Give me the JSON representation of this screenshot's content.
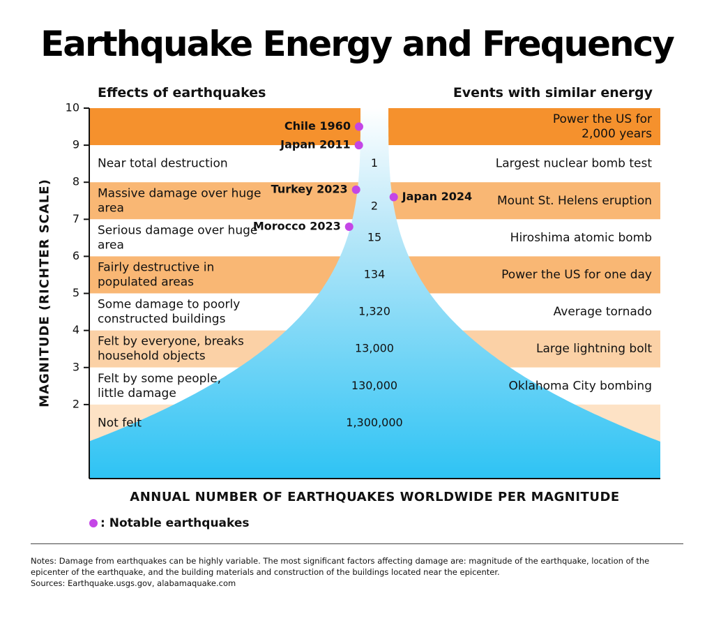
{
  "title": "Earthquake Energy and Frequency",
  "left_header": "Effects of earthquakes",
  "right_header": "Events with similar energy",
  "legend_label": ": Notable earthquakes",
  "notes": "Notes: Damage from earthquakes can be highly variable. The most significant factors affecting damage are: magnitude of the earthquake, location of the epicenter of the earthquake, and the building materials and construction of the buildings located near the epicenter.",
  "sources": "Sources: Earthquake.usgs.gov, alabamaquake.com",
  "colors": {
    "band_dark": "#f5912d",
    "band_mid": "#f9b774",
    "band_light": "#fbd1a6",
    "band_pale": "#fde2c5",
    "funnel_top": "#ffffff",
    "funnel_bottom": "#2ec3f4",
    "marker": "#c446e6"
  },
  "chart_data": {
    "type": "table",
    "ylabel": "MAGNITUDE (RICHTER SCALE)",
    "xlabel": "ANNUAL NUMBER OF EARTHQUAKES WORLDWIDE PER MAGNITUDE",
    "ylim": [
      1,
      10
    ],
    "y_ticks": [
      "10",
      "9",
      "8",
      "7",
      "6",
      "5",
      "4",
      "3",
      "2"
    ],
    "bands": [
      {
        "from": 9,
        "to": 10,
        "effect": "",
        "count": "",
        "event": "Power the US for 2,000 years",
        "shade": "band_dark"
      },
      {
        "from": 8,
        "to": 9,
        "effect": "Near total destruction",
        "count": "1",
        "event": "Largest nuclear bomb test",
        "shade": "white"
      },
      {
        "from": 7,
        "to": 8,
        "effect": "Massive damage over huge area",
        "count": "2",
        "event": "Mount St. Helens eruption",
        "shade": "band_mid"
      },
      {
        "from": 6,
        "to": 7,
        "effect": "Serious damage over huge area",
        "count": "15",
        "event": "Hiroshima atomic bomb",
        "shade": "white"
      },
      {
        "from": 5,
        "to": 6,
        "effect": "Fairly destructive in populated areas",
        "count": "134",
        "event": "Power the US for one day",
        "shade": "band_mid"
      },
      {
        "from": 4,
        "to": 5,
        "effect": "Some damage to poorly constructed buildings",
        "count": "1,320",
        "event": "Average tornado",
        "shade": "white"
      },
      {
        "from": 3,
        "to": 4,
        "effect": "Felt by everyone, breaks household objects",
        "count": "13,000",
        "event": "Large lightning bolt",
        "shade": "band_light"
      },
      {
        "from": 2,
        "to": 3,
        "effect": "Felt by some people, little damage",
        "count": "130,000",
        "event": "Oklahoma City bombing",
        "shade": "white"
      },
      {
        "from": 1,
        "to": 2,
        "effect": "Not felt",
        "count": "1,300,000",
        "event": "",
        "shade": "band_pale"
      }
    ],
    "notable_earthquakes": [
      {
        "label": "Chile 1960",
        "magnitude": 9.5,
        "side": "left"
      },
      {
        "label": "Japan 2011",
        "magnitude": 9.0,
        "side": "left"
      },
      {
        "label": "Turkey 2023",
        "magnitude": 7.8,
        "side": "left"
      },
      {
        "label": "Japan 2024",
        "magnitude": 7.6,
        "side": "right"
      },
      {
        "label": "Morocco 2023",
        "magnitude": 6.8,
        "side": "left"
      }
    ]
  }
}
